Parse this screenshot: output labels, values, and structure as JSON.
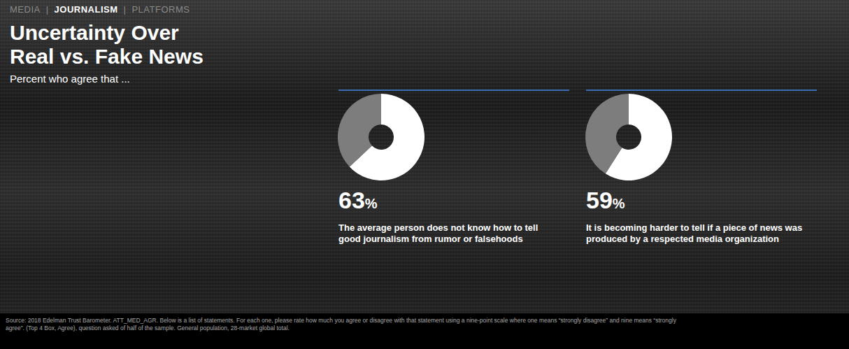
{
  "header": {
    "nav": [
      "MEDIA",
      "JOURNALISM",
      "PLATFORMS"
    ],
    "nav_separator": "|",
    "active": "JOURNALISM",
    "title": "Uncertainty Over Real vs. Fake News",
    "subtitle": "Percent who agree that ..."
  },
  "chart_data": [
    {
      "type": "pie",
      "title": "The average person does not know how to tell good journalism from rumor or falsehoods",
      "values": [
        63,
        37
      ],
      "value_labels": [
        "63%",
        null
      ],
      "colors": [
        "#ffffff",
        "#7d7d7d"
      ]
    },
    {
      "type": "pie",
      "title": "It is becoming harder to tell if a piece of news was produced by a respected media organization",
      "values": [
        59,
        41
      ],
      "value_labels": [
        "59%",
        null
      ],
      "colors": [
        "#ffffff",
        "#7d7d7d"
      ]
    }
  ],
  "source": "Source: 2018 Edelman Trust Barometer. ATT_MED_AGR. Below is a list of statements. For each one, please rate how much you agree or disagree with that statement using a nine-point scale where one means “strongly disagree” and nine means “strongly agree”. (Top 4 Box, Agree), question asked of half of the sample. General population, 28-market global total."
}
